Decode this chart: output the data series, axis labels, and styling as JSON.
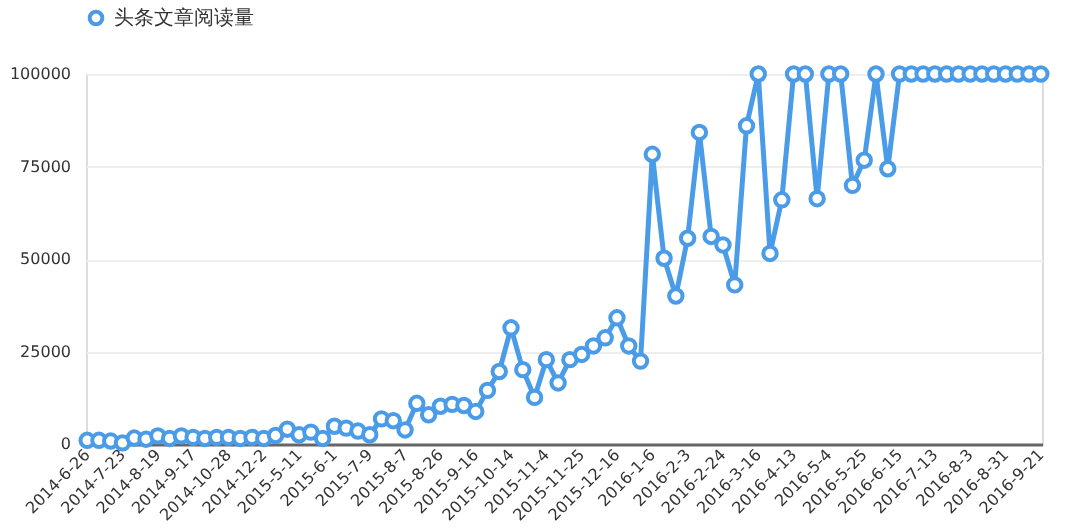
{
  "chart_data": {
    "type": "line",
    "categories": [
      "2014-6-26",
      null,
      null,
      "2014-7-23",
      null,
      null,
      "2014-8-19",
      null,
      null,
      "2014-9-17",
      null,
      null,
      "2014-10-28",
      null,
      null,
      "2014-12-2",
      null,
      null,
      "2015-5-11",
      null,
      null,
      "2015-6-1",
      null,
      null,
      "2015-7-9",
      null,
      null,
      "2015-8-7",
      null,
      null,
      "2015-8-26",
      null,
      null,
      "2015-9-16",
      null,
      null,
      "2015-10-14",
      null,
      null,
      "2015-11-4",
      null,
      null,
      "2015-11-25",
      null,
      null,
      "2015-12-16",
      null,
      null,
      "2016-1-6",
      null,
      null,
      "2016-2-3",
      null,
      null,
      "2016-2-24",
      null,
      null,
      "2016-3-16",
      null,
      null,
      "2016-4-13",
      null,
      null,
      "2016-5-4",
      null,
      null,
      "2016-5-25",
      null,
      null,
      "2016-6-15",
      null,
      null,
      "2016-7-13",
      null,
      null,
      "2016-8-3",
      null,
      null,
      "2016-8-31",
      null,
      null,
      "2016-9-21"
    ],
    "series": [
      {
        "name": "头条文章阅读量",
        "color": "#4a9be8",
        "values": [
          1000,
          1000,
          800,
          300,
          1600,
          1300,
          2200,
          1500,
          2200,
          1800,
          1500,
          1800,
          1800,
          1500,
          1800,
          1500,
          2300,
          4000,
          2500,
          3200,
          1500,
          4800,
          4300,
          3500,
          2500,
          6800,
          6300,
          3800,
          11000,
          7900,
          10200,
          10700,
          10400,
          8800,
          14500,
          19600,
          31400,
          20100,
          12600,
          22800,
          16500,
          22800,
          24200,
          26500,
          28700,
          34100,
          26500,
          22400,
          78300,
          50200,
          40000,
          55600,
          84200,
          56100,
          53800,
          43000,
          86000,
          100000,
          51500,
          66000,
          100000,
          100000,
          66300,
          100000,
          100000,
          69900,
          76700,
          100000,
          74400,
          100000,
          100000,
          100000,
          100000,
          100000,
          100000,
          100000,
          100000,
          100000,
          100000,
          100000,
          100000,
          100000
        ]
      }
    ],
    "ylim": [
      0,
      100000
    ],
    "yticks": [
      0,
      25000,
      50000,
      75000,
      100000
    ],
    "grid": "y",
    "legend": "top",
    "marker": "circle",
    "line_style": "solid"
  }
}
